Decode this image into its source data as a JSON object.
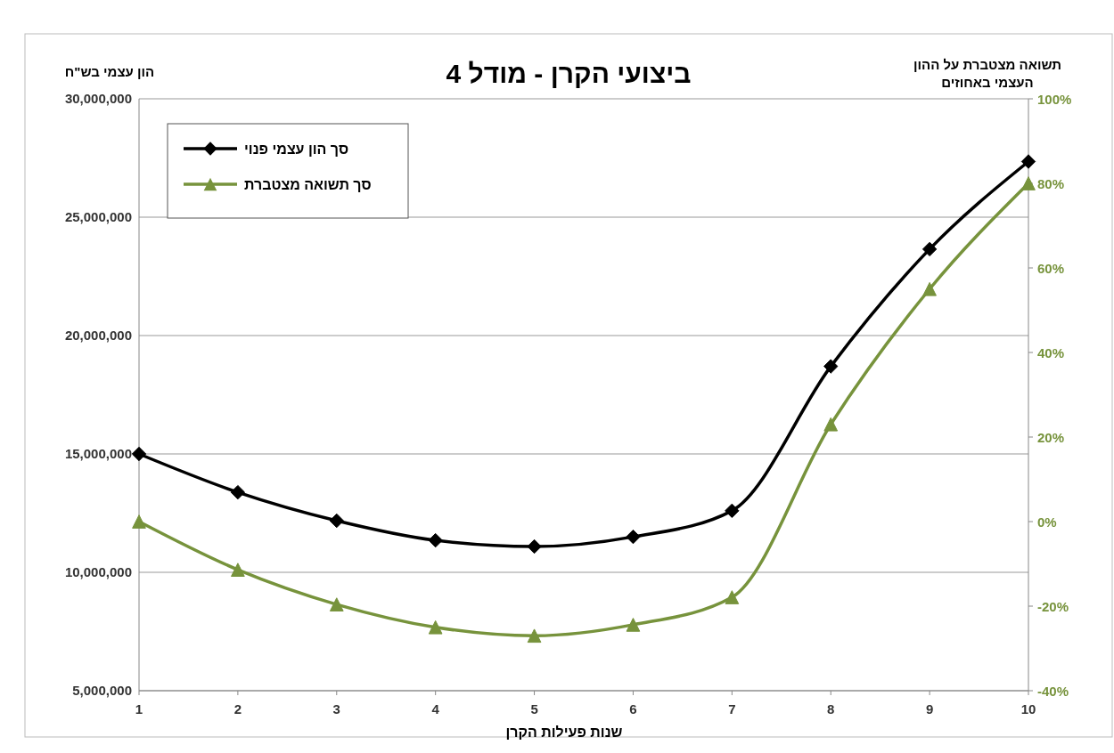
{
  "chart_data": {
    "type": "line",
    "title": "ביצועי הקרן - מודל 4",
    "ylabel": "הון עצמי בש\"ח",
    "y2label": "תשואה מצטברת על ההון העצמי באחוזים",
    "xlabel": "שנות פעילות הקרן",
    "x": [
      1,
      2,
      3,
      4,
      5,
      6,
      7,
      8,
      9,
      10
    ],
    "xlim": [
      1,
      10
    ],
    "xticks": [
      1,
      2,
      3,
      4,
      5,
      6,
      7,
      8,
      9,
      10
    ],
    "ylim": [
      5000000,
      30000000
    ],
    "yticks": [
      {
        "value": 5000000,
        "label": "5,000,000"
      },
      {
        "value": 10000000,
        "label": "10,000,000"
      },
      {
        "value": 15000000,
        "label": "15,000,000"
      },
      {
        "value": 20000000,
        "label": "20,000,000"
      },
      {
        "value": 25000000,
        "label": "25,000,000"
      },
      {
        "value": 30000000,
        "label": "30,000,000"
      }
    ],
    "y2lim": [
      -40,
      100
    ],
    "y2ticks": [
      {
        "value": -40,
        "label": "-40%"
      },
      {
        "value": -20,
        "label": "-20%"
      },
      {
        "value": 0,
        "label": "0%"
      },
      {
        "value": 20,
        "label": "20%"
      },
      {
        "value": 40,
        "label": "40%"
      },
      {
        "value": 60,
        "label": "60%"
      },
      {
        "value": 80,
        "label": "80%"
      },
      {
        "value": 100,
        "label": "100%"
      }
    ],
    "grid": "y",
    "legend": "top left",
    "series": [
      {
        "name": "סך הון עצמי פנוי",
        "color": "#000000",
        "marker": "diamond",
        "values": [
          15000000,
          13380000,
          12180000,
          11350000,
          11090000,
          11500000,
          12600000,
          18700000,
          23650000,
          27350000
        ]
      },
      {
        "name": "סך תשואה מצטברת",
        "color": "#77933c",
        "marker": "triangle",
        "axis": "y2",
        "values": [
          0,
          -11.4,
          -19.6,
          -25,
          -27,
          -24.4,
          -17.9,
          23,
          55,
          80
        ]
      }
    ]
  }
}
